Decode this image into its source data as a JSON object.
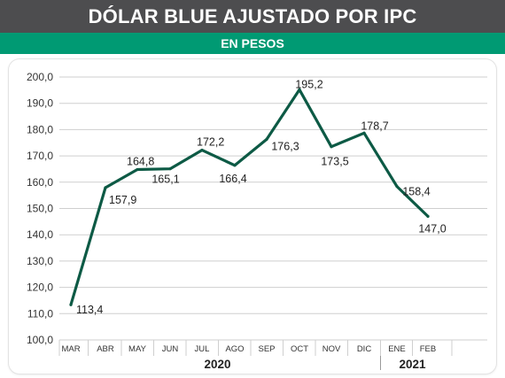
{
  "header": {
    "title": "DÓLAR BLUE AJUSTADO POR IPC",
    "subtitle": "EN PESOS"
  },
  "colors": {
    "title_bar": "#4d4d4f",
    "subtitle_bar": "#009a73",
    "line": "#0d5a45",
    "grid": "#cfcfcf"
  },
  "chart_data": {
    "type": "line",
    "title": "DÓLAR BLUE AJUSTADO POR IPC",
    "subtitle": "EN PESOS",
    "categories": [
      "MAR",
      "ABR",
      "MAY",
      "JUN",
      "JUL",
      "AGO",
      "SEP",
      "OCT",
      "NOV",
      "DIC",
      "ENE",
      "FEB"
    ],
    "series": [
      {
        "values": [
          113.4,
          157.9,
          164.8,
          165.1,
          172.2,
          166.4,
          176.3,
          195.2,
          173.5,
          178.7,
          158.4,
          147.0
        ],
        "labels": [
          "113,4",
          "157,9",
          "164,8",
          "165,1",
          "172,2",
          "166,4",
          "176,3",
          "195,2",
          "173,5",
          "178,7",
          "158,4",
          "147,0"
        ]
      }
    ],
    "ylim": [
      100,
      200
    ],
    "yticks": [
      100,
      110,
      120,
      130,
      140,
      150,
      160,
      170,
      180,
      190,
      200
    ],
    "ytick_labels": [
      "100,0",
      "110,0",
      "120,0",
      "130,0",
      "140,0",
      "150,0",
      "160,0",
      "170,0",
      "180,0",
      "190,0",
      "200,0"
    ],
    "groups": [
      {
        "label": "2020",
        "from": 0,
        "to": 9
      },
      {
        "label": "2021",
        "from": 10,
        "to": 11
      }
    ],
    "grid": true,
    "legend": "none"
  }
}
